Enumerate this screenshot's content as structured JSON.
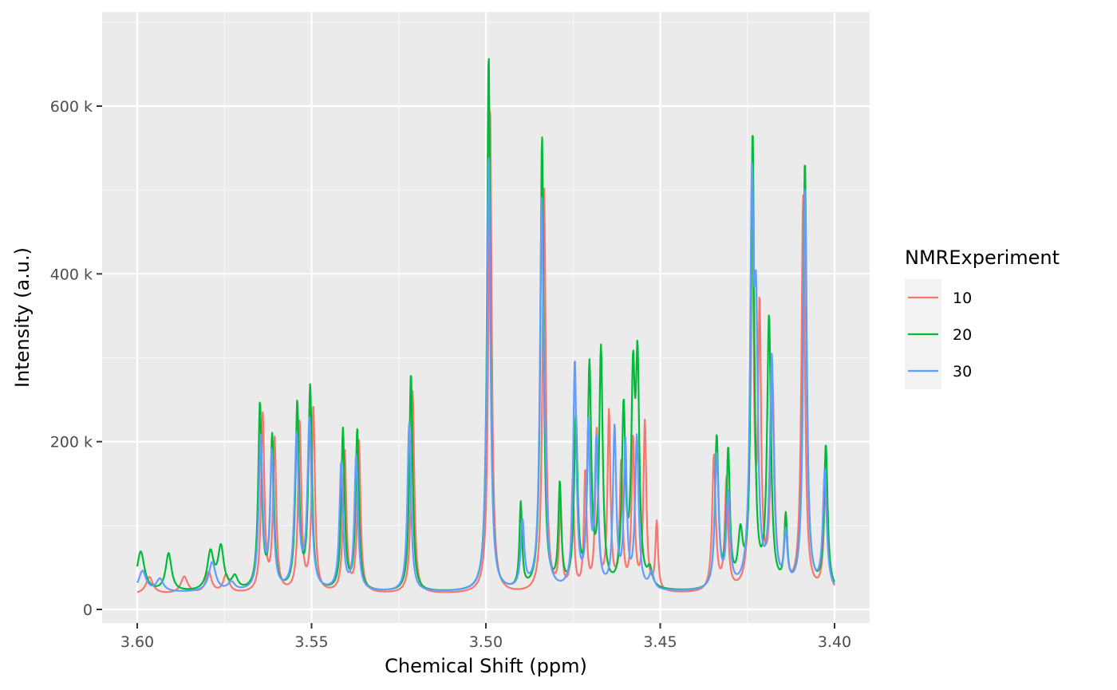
{
  "chart_data": {
    "type": "line",
    "title": "",
    "xlabel": "Chemical Shift (ppm)",
    "ylabel": "Intensity (a.u.)",
    "xlim": [
      3.6,
      3.4
    ],
    "x_reversed": true,
    "ylim": [
      -15000,
      705000
    ],
    "x_ticks": [
      3.6,
      3.55,
      3.5,
      3.45,
      3.4
    ],
    "x_tick_labels": [
      "3.60",
      "3.55",
      "3.50",
      "3.45",
      "3.40"
    ],
    "y_ticks": [
      0,
      200000,
      400000,
      600000
    ],
    "y_tick_labels": [
      "0",
      "200 k",
      "400 k",
      "600 k"
    ],
    "grid": true,
    "legend": {
      "title": "NMRExperiment",
      "position": "right"
    },
    "colors": {
      "10": "#F8766D",
      "20": "#00BA38",
      "30": "#619CFF"
    },
    "peaks": {
      "10": [
        [
          3.5965,
          20000,
          0.0012
        ],
        [
          3.5865,
          20000,
          0.0012
        ],
        [
          3.5795,
          25000,
          0.001
        ],
        [
          3.5745,
          22000,
          0.001
        ],
        [
          3.564,
          211000,
          0.00055
        ],
        [
          3.5606,
          181000,
          0.00055
        ],
        [
          3.5534,
          201000,
          0.00055
        ],
        [
          3.5495,
          221000,
          0.00055
        ],
        [
          3.5405,
          170000,
          0.00055
        ],
        [
          3.5364,
          180000,
          0.00055
        ],
        [
          3.521,
          241000,
          0.00055
        ],
        [
          3.4988,
          581000,
          0.00055
        ],
        [
          3.4833,
          481000,
          0.00055
        ],
        [
          3.4786,
          101000,
          0.00045
        ],
        [
          3.4751,
          131000,
          0.00045
        ],
        [
          3.4715,
          141000,
          0.00045
        ],
        [
          3.4682,
          191000,
          0.0005
        ],
        [
          3.4647,
          211000,
          0.0005
        ],
        [
          3.4612,
          151000,
          0.0005
        ],
        [
          3.4578,
          181000,
          0.0005
        ],
        [
          3.4544,
          201000,
          0.0005
        ],
        [
          3.451,
          81000,
          0.00045
        ],
        [
          3.4346,
          161000,
          0.0006
        ],
        [
          3.431,
          131000,
          0.00055
        ],
        [
          3.4237,
          471000,
          0.00055
        ],
        [
          3.4215,
          321000,
          0.0005
        ],
        [
          3.4178,
          241000,
          0.00065
        ],
        [
          3.414,
          81000,
          0.0005
        ],
        [
          3.409,
          471000,
          0.0006
        ],
        [
          3.4025,
          141000,
          0.0006
        ]
      ],
      "20": [
        [
          3.599,
          48000,
          0.0013
        ],
        [
          3.591,
          45000,
          0.001
        ],
        [
          3.579,
          45000,
          0.0011
        ],
        [
          3.576,
          50000,
          0.001
        ],
        [
          3.572,
          15000,
          0.001
        ],
        [
          3.5648,
          221000,
          0.0006
        ],
        [
          3.5613,
          181000,
          0.0006
        ],
        [
          3.5541,
          221000,
          0.0006
        ],
        [
          3.5504,
          241000,
          0.0006
        ],
        [
          3.541,
          191000,
          0.00055
        ],
        [
          3.5369,
          191000,
          0.00055
        ],
        [
          3.5215,
          261000,
          0.00055
        ],
        [
          3.4992,
          641000,
          0.00055
        ],
        [
          3.4839,
          541000,
          0.00055
        ],
        [
          3.49,
          101000,
          0.00045
        ],
        [
          3.4788,
          121000,
          0.0005
        ],
        [
          3.4742,
          201000,
          0.0006
        ],
        [
          3.4703,
          261000,
          0.0006
        ],
        [
          3.467,
          281000,
          0.0006
        ],
        [
          3.4605,
          211000,
          0.0006
        ],
        [
          3.4578,
          231000,
          0.0006
        ],
        [
          3.4565,
          251000,
          0.0006
        ],
        [
          3.453,
          20000,
          0.0008
        ],
        [
          3.4338,
          181000,
          0.0006
        ],
        [
          3.4305,
          161000,
          0.00055
        ],
        [
          3.427,
          60000,
          0.0008
        ],
        [
          3.4235,
          541000,
          0.00055
        ],
        [
          3.4188,
          321000,
          0.00065
        ],
        [
          3.414,
          81000,
          0.0005
        ],
        [
          3.4085,
          511000,
          0.0006
        ],
        [
          3.4025,
          171000,
          0.0006
        ]
      ],
      "30": [
        [
          3.5985,
          25000,
          0.0013
        ],
        [
          3.5935,
          15000,
          0.0012
        ],
        [
          3.5785,
          35000,
          0.0012
        ],
        [
          3.573,
          10000,
          0.0012
        ],
        [
          3.5646,
          181000,
          0.00065
        ],
        [
          3.5614,
          161000,
          0.0006
        ],
        [
          3.5543,
          181000,
          0.0007
        ],
        [
          3.5506,
          201000,
          0.0007
        ],
        [
          3.5415,
          151000,
          0.0006
        ],
        [
          3.5372,
          161000,
          0.0006
        ],
        [
          3.522,
          201000,
          0.0006
        ],
        [
          3.4992,
          521000,
          0.0006
        ],
        [
          3.484,
          451000,
          0.0006
        ],
        [
          3.4895,
          80000,
          0.0006
        ],
        [
          3.483,
          80000,
          0.0005
        ],
        [
          3.4745,
          271000,
          0.00055
        ],
        [
          3.4706,
          191000,
          0.00055
        ],
        [
          3.4683,
          171000,
          0.00055
        ],
        [
          3.4631,
          191000,
          0.00055
        ],
        [
          3.46,
          171000,
          0.0005
        ],
        [
          3.4567,
          181000,
          0.0006
        ],
        [
          3.4525,
          20000,
          0.0008
        ],
        [
          3.4338,
          161000,
          0.00065
        ],
        [
          3.4305,
          111000,
          0.0006
        ],
        [
          3.4237,
          451000,
          0.0006
        ],
        [
          3.4225,
          281000,
          0.0006
        ],
        [
          3.418,
          271000,
          0.00065
        ],
        [
          3.414,
          61000,
          0.00055
        ],
        [
          3.4085,
          481000,
          0.0006
        ],
        [
          3.4028,
          141000,
          0.00065
        ]
      ]
    },
    "series": [
      {
        "name": "10",
        "baseline": 18000
      },
      {
        "name": "20",
        "baseline": 20000
      },
      {
        "name": "30",
        "baseline": 20000
      }
    ]
  }
}
